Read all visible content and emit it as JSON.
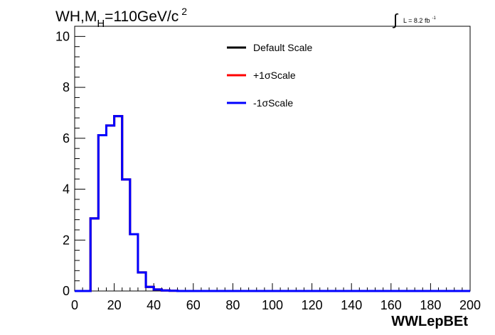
{
  "chart_data": {
    "type": "step",
    "title_main": "WH,M",
    "title_sub": "H",
    "title_rest": "=110GeV/c",
    "title_sup": "2",
    "lumi_label": "L = 8.2 fb",
    "lumi_sup": "-1",
    "xlabel": "WWLepBEt",
    "xlim": [
      0,
      200
    ],
    "ylim": [
      0,
      10.4
    ],
    "x_ticks": [
      "0",
      "20",
      "40",
      "60",
      "80",
      "100",
      "120",
      "140",
      "160",
      "180",
      "200"
    ],
    "x_tick_values": [
      0,
      20,
      40,
      60,
      80,
      100,
      120,
      140,
      160,
      180,
      200
    ],
    "y_ticks": [
      "0",
      "2",
      "4",
      "6",
      "8",
      "10"
    ],
    "y_tick_values": [
      0,
      2,
      4,
      6,
      8,
      10
    ],
    "bin_edges": [
      0,
      4,
      8,
      12,
      16,
      20,
      24,
      28,
      32,
      36,
      40,
      44,
      48,
      52,
      200
    ],
    "series": [
      {
        "name": "Default Scale",
        "color": "#000000",
        "values": [
          0,
          0,
          2.85,
          6.12,
          6.5,
          6.87,
          4.38,
          2.23,
          0.73,
          0.16,
          0.06,
          0.02,
          0.01,
          0.0
        ]
      },
      {
        "name": "+1σScale",
        "color": "#ff0000",
        "values": [
          0,
          0,
          2.85,
          6.12,
          6.5,
          6.87,
          4.38,
          2.23,
          0.73,
          0.16,
          0.06,
          0.02,
          0.01,
          0.0
        ]
      },
      {
        "name": "-1σScale",
        "color": "#0000ff",
        "values": [
          0,
          0,
          2.85,
          6.12,
          6.5,
          6.87,
          4.38,
          2.23,
          0.73,
          0.16,
          0.06,
          0.02,
          0.01,
          0.0
        ]
      }
    ],
    "legend_position": "top-center",
    "grid": false
  }
}
